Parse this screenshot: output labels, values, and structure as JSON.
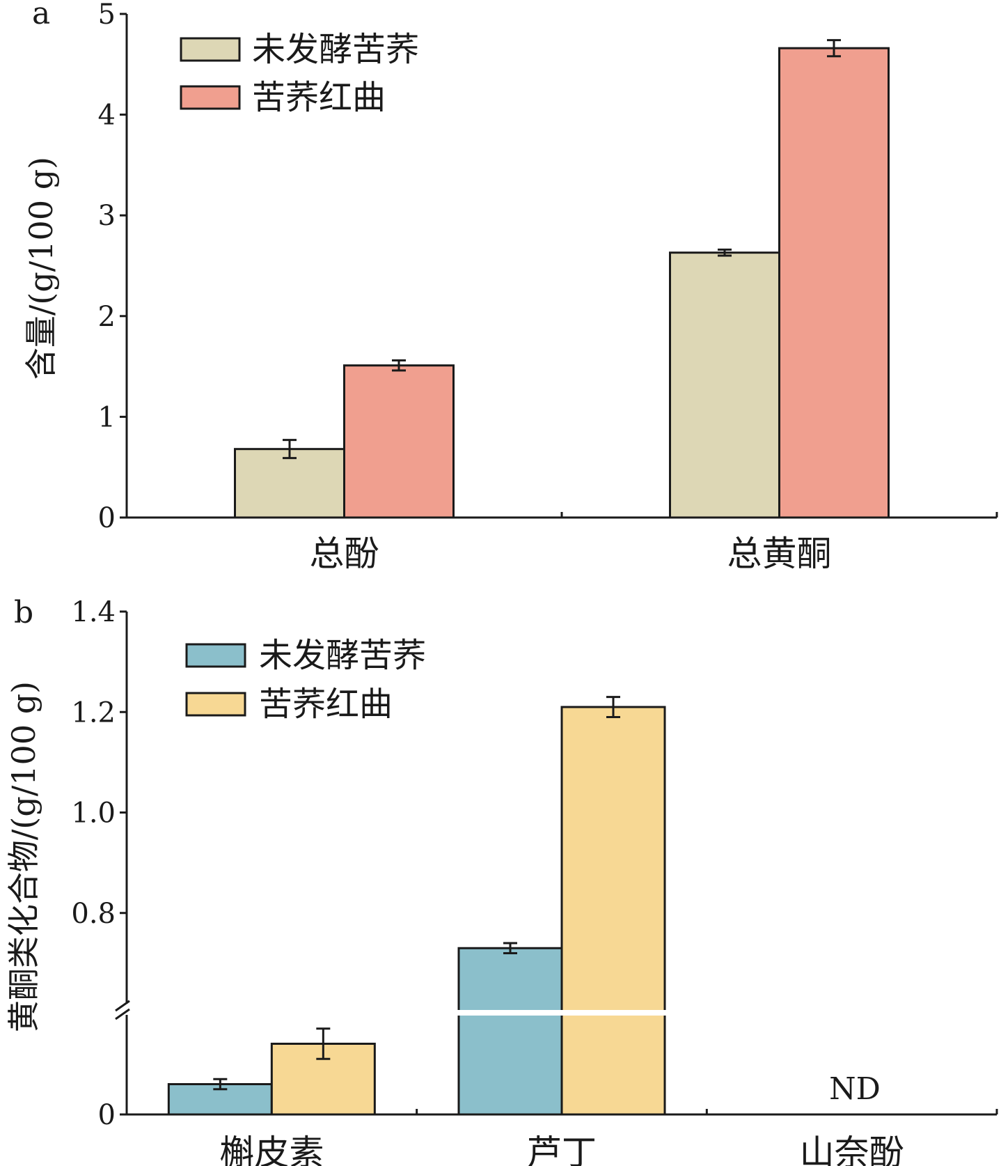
{
  "chart_data": [
    {
      "panel_label": "a",
      "type": "bar",
      "ylabel": "含量/(g/100 g)",
      "ylim": [
        0,
        5
      ],
      "yticks": [
        "0",
        "1",
        "2",
        "3",
        "4",
        "5"
      ],
      "categories": [
        "总酚",
        "总黄酮"
      ],
      "series": [
        {
          "name": "未发酵苦荞",
          "color": "#ddd7b5",
          "values": [
            0.68,
            2.63
          ],
          "errors": [
            0.09,
            0.03
          ]
        },
        {
          "name": "苦荞红曲",
          "color": "#f09f8f",
          "values": [
            1.51,
            4.66
          ],
          "errors": [
            0.05,
            0.08
          ]
        }
      ],
      "legend": "top-left",
      "grid": false
    },
    {
      "panel_label": "b",
      "type": "bar",
      "ylabel": "黄酮类化合物/(g/100 g)",
      "ylim": [
        0,
        1.4
      ],
      "axis_break": true,
      "yticks": [
        "0",
        "0.8",
        "1.0",
        "1.2",
        "1.4"
      ],
      "categories": [
        "槲皮素",
        "芦丁",
        "山奈酚"
      ],
      "series": [
        {
          "name": "未发酵苦荞",
          "color": "#8bbfcb",
          "values": [
            0.06,
            0.73,
            null
          ],
          "errors": [
            0.01,
            0.01,
            null
          ]
        },
        {
          "name": "苦荞红曲",
          "color": "#f7d894",
          "values": [
            0.14,
            1.21,
            null
          ],
          "errors": [
            0.03,
            0.02,
            null
          ]
        }
      ],
      "annotations": [
        "ND"
      ],
      "legend": "top-left",
      "grid": false
    }
  ]
}
